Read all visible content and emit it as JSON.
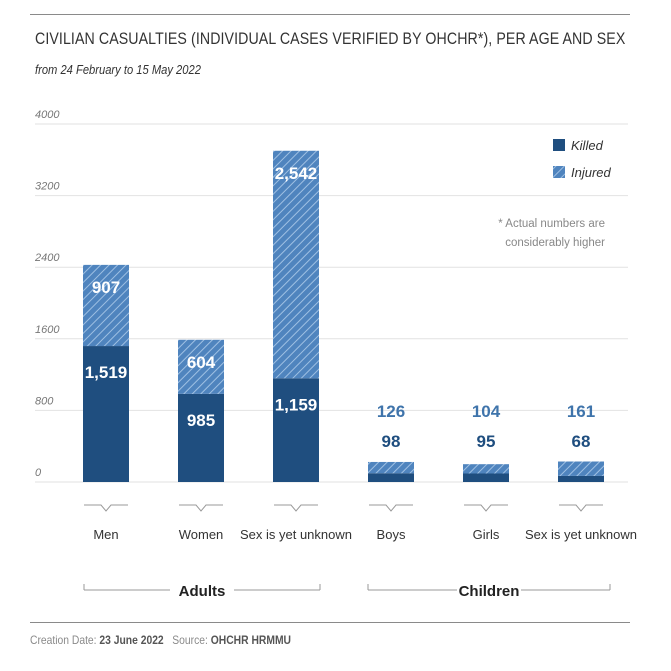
{
  "header": {
    "title": "CIVILIAN CASUALTIES (INDIVIDUAL CASES VERIFIED BY OHCHR*), PER AGE AND SEX",
    "subtitle": "from 24 February to 15 May 2022"
  },
  "footer": {
    "creation_label": "Creation Date:",
    "creation_date": "23 June 2022",
    "source_label": "Source:",
    "source": "OHCHR HRMMU"
  },
  "note": [
    "* Actual numbers are",
    "considerably higher"
  ],
  "colors": {
    "killed": "#1f4e7f",
    "injured": "#4f84be",
    "injured_stripe": "#ffffff",
    "grid": "#e2e2e2"
  },
  "chart_data": {
    "type": "bar",
    "stacked": true,
    "categories": [
      "Men",
      "Women",
      "Sex is yet unknown",
      "Boys",
      "Girls",
      "Sex is yet unknown"
    ],
    "groups": [
      {
        "label": "Adults",
        "categories": [
          0,
          1,
          2
        ]
      },
      {
        "label": "Children",
        "categories": [
          3,
          4,
          5
        ]
      }
    ],
    "series": [
      {
        "name": "Killed",
        "values": [
          1519,
          985,
          1159,
          98,
          95,
          68
        ],
        "labels": [
          "1,519",
          "985",
          "1,159",
          "98",
          "95",
          "68"
        ]
      },
      {
        "name": "Injured",
        "values": [
          907,
          604,
          2542,
          126,
          104,
          161
        ],
        "labels": [
          "907",
          "604",
          "2,542",
          "126",
          "104",
          "161"
        ]
      }
    ],
    "ylim": [
      0,
      4000
    ],
    "yticks": [
      0,
      800,
      1600,
      2400,
      3200,
      4000
    ],
    "ytick_labels": [
      "0",
      "800",
      "1600",
      "2400",
      "3200",
      "4000"
    ],
    "grid": true,
    "legend_position": "top-right"
  }
}
